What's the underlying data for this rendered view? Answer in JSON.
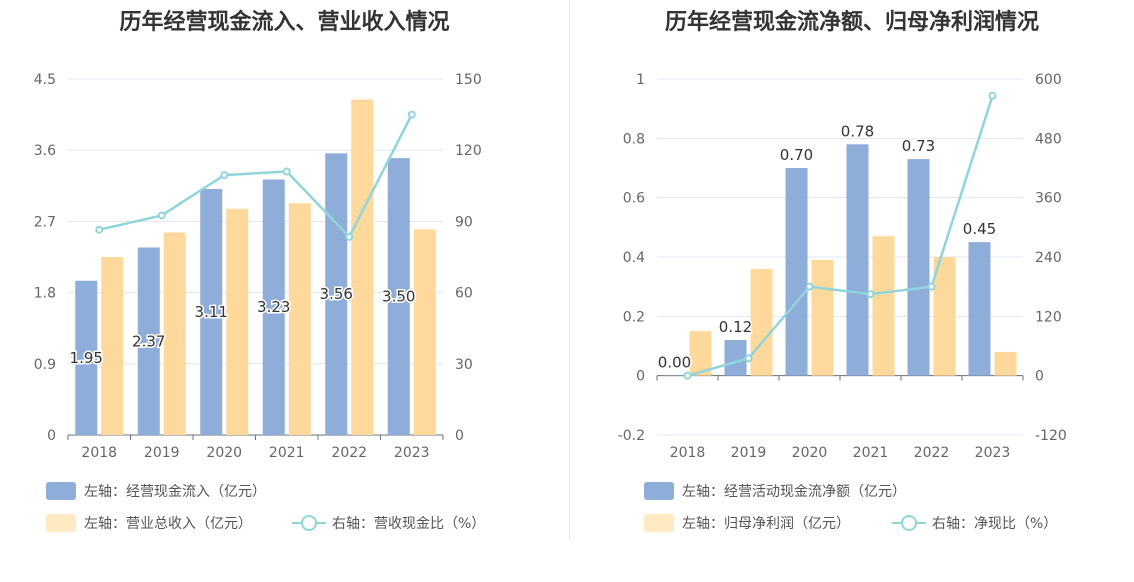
{
  "chart_data": [
    {
      "type": "bar",
      "title": "历年经营现金流入、营业收入情况",
      "categories": [
        "2018",
        "2019",
        "2020",
        "2021",
        "2022",
        "2023"
      ],
      "y_left": {
        "ticks": [
          "0",
          "0.9",
          "1.8",
          "2.7",
          "3.6",
          "4.5"
        ],
        "min": 0,
        "max": 4.5
      },
      "y_right": {
        "ticks": [
          "0",
          "30",
          "60",
          "90",
          "120",
          "150"
        ],
        "min": 0,
        "max": 150
      },
      "series": [
        {
          "name": "左轴：经营现金流入（亿元）",
          "kind": "bar",
          "axis": "left",
          "color": "#8eadd9",
          "values": [
            1.95,
            2.37,
            3.11,
            3.23,
            3.56,
            3.5
          ],
          "labels": [
            "1.95",
            "2.37",
            "3.11",
            "3.23",
            "3.56",
            "3.50"
          ]
        },
        {
          "name": "左轴：营业总收入（亿元）",
          "kind": "bar",
          "axis": "left",
          "color": "#ffd99c",
          "values": [
            2.25,
            2.56,
            2.86,
            2.93,
            4.24,
            2.6
          ]
        },
        {
          "name": "右轴：营收现金比（%）",
          "kind": "line",
          "axis": "right",
          "color": "#8fd5dc",
          "values": [
            86.5,
            92.5,
            109.5,
            111,
            83.5,
            135
          ]
        }
      ],
      "grid": true,
      "legend_position": "bottom"
    },
    {
      "type": "bar",
      "title": "历年经营现金流净额、归母净利润情况",
      "categories": [
        "2018",
        "2019",
        "2020",
        "2021",
        "2022",
        "2023"
      ],
      "y_left": {
        "ticks": [
          "-0.2",
          "0",
          "0.2",
          "0.4",
          "0.6",
          "0.8",
          "1"
        ],
        "min": -0.2,
        "max": 1
      },
      "y_right": {
        "ticks": [
          "-120",
          "0",
          "120",
          "240",
          "360",
          "480",
          "600"
        ],
        "min": -120,
        "max": 600
      },
      "series": [
        {
          "name": "左轴：经营活动现金流净额（亿元）",
          "kind": "bar",
          "axis": "left",
          "color": "#8eadd9",
          "values": [
            0.0,
            0.12,
            0.7,
            0.78,
            0.73,
            0.45
          ],
          "labels": [
            "0.00",
            "0.12",
            "0.70",
            "0.78",
            "0.73",
            "0.45"
          ]
        },
        {
          "name": "左轴：归母净利润（亿元）",
          "kind": "bar",
          "axis": "left",
          "color": "#ffd99c",
          "values": [
            0.15,
            0.36,
            0.39,
            0.47,
            0.4,
            0.08
          ]
        },
        {
          "name": "右轴：净现比（%）",
          "kind": "line",
          "axis": "right",
          "color": "#8fd5dc",
          "values": [
            0,
            35,
            180,
            165,
            180,
            566
          ]
        }
      ],
      "grid": true,
      "legend_position": "bottom"
    }
  ]
}
